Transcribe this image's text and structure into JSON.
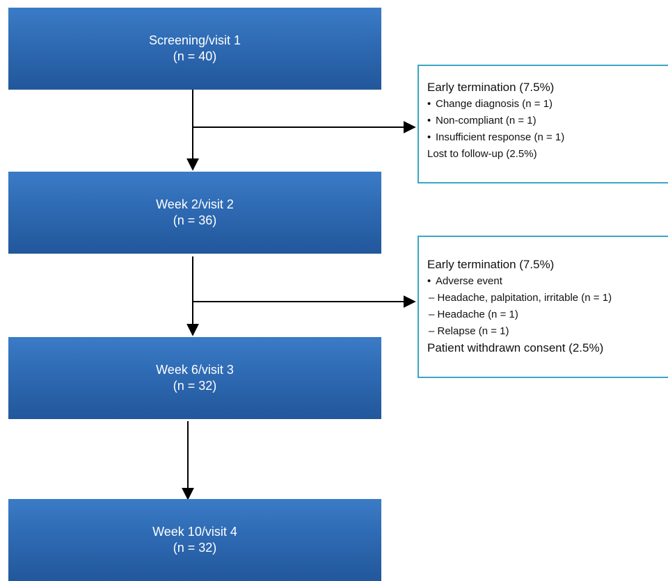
{
  "stages": [
    {
      "title": "Screening/visit 1",
      "n": "(n = 40)"
    },
    {
      "title": "Week 2/visit 2",
      "n": "(n = 36)"
    },
    {
      "title": "Week 6/visit 3",
      "n": "(n = 32)"
    },
    {
      "title": "Week 10/visit 4",
      "n": "(n = 32)"
    }
  ],
  "exit_box_1": {
    "heading": "Early termination (7.5%)",
    "items": [
      "Change diagnosis (n = 1)",
      "Non-compliant (n = 1)",
      "Insufficient response (n = 1)"
    ],
    "footer": "Lost to follow-up (2.5%)"
  },
  "exit_box_2": {
    "heading": "Early termination (7.5%)",
    "bullet": "Adverse event",
    "sub_items": [
      "– Headache, palpitation, irritable (n = 1)",
      "– Headache (n = 1)",
      "– Relapse (n = 1)"
    ],
    "footer": "Patient withdrawn consent (2.5%)"
  },
  "colors": {
    "stage_fill": "#2e6ab3",
    "side_border": "#3aa6c6",
    "arrow": "#000000"
  }
}
